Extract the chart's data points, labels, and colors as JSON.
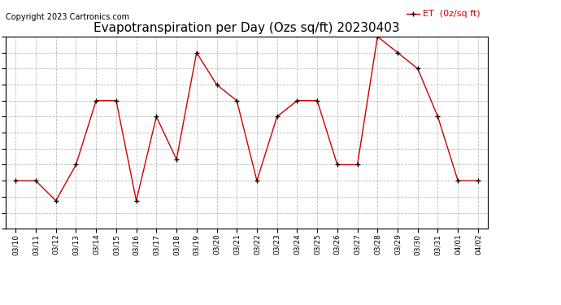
{
  "title": "Evapotranspiration per Day (Ozs sq/ft) 20230403",
  "copyright": "Copyright 2023 Cartronics.com",
  "legend_label": "ET  (0z/sq ft)",
  "dates": [
    "03/10",
    "03/11",
    "03/12",
    "03/13",
    "03/14",
    "03/15",
    "03/16",
    "03/17",
    "03/18",
    "03/19",
    "03/20",
    "03/21",
    "03/22",
    "03/23",
    "03/24",
    "03/25",
    "03/26",
    "03/27",
    "03/28",
    "03/29",
    "03/30",
    "03/31",
    "04/01",
    "04/02"
  ],
  "values": [
    1.795,
    1.795,
    1.048,
    2.394,
    4.787,
    4.787,
    1.048,
    4.189,
    2.593,
    6.583,
    5.386,
    4.787,
    1.795,
    4.189,
    4.787,
    4.787,
    2.394,
    2.394,
    7.181,
    6.583,
    5.984,
    4.189,
    1.795,
    1.795
  ],
  "ylim": [
    0.0,
    7.181
  ],
  "yticks": [
    0.0,
    0.598,
    1.197,
    1.795,
    2.394,
    2.992,
    3.591,
    4.189,
    4.787,
    5.386,
    5.984,
    6.583,
    7.181
  ],
  "line_color": "#cc0000",
  "marker_color": "#000000",
  "grid_color": "#bbbbbb",
  "bg_color": "#ffffff",
  "title_fontsize": 11,
  "copyright_fontsize": 7,
  "legend_fontsize": 8,
  "xtick_fontsize": 6.5,
  "ytick_fontsize": 7,
  "legend_color": "#cc0000"
}
